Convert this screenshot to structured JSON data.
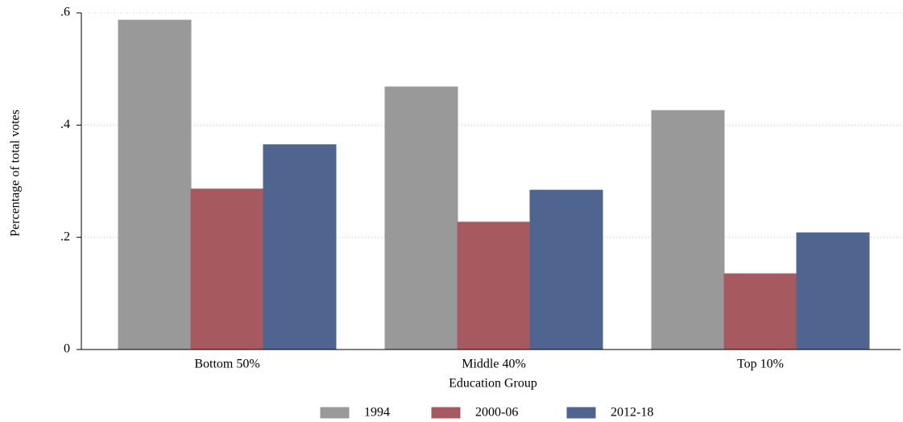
{
  "chart_data": {
    "type": "bar",
    "y_label": "Percentage of total votes",
    "x_label": "Education Group",
    "categories": [
      "Bottom 50%",
      "Middle 40%",
      "Top 10%"
    ],
    "series": [
      {
        "name": "1994",
        "color": "#999999",
        "values": [
          0.587,
          0.468,
          0.426
        ]
      },
      {
        "name": "2000-06",
        "color": "#a65a60",
        "values": [
          0.286,
          0.227,
          0.135
        ]
      },
      {
        "name": "2012-18",
        "color": "#4f6590",
        "values": [
          0.365,
          0.284,
          0.208
        ]
      }
    ],
    "ylim": [
      0,
      0.6
    ],
    "yticks": [
      0,
      {
        "value": 0.2,
        "label": ".2"
      },
      {
        "value": 0.4,
        "label": ".4"
      },
      {
        "value": 0.6,
        "label": ".6"
      }
    ],
    "grid": true,
    "legend": "bottom"
  }
}
